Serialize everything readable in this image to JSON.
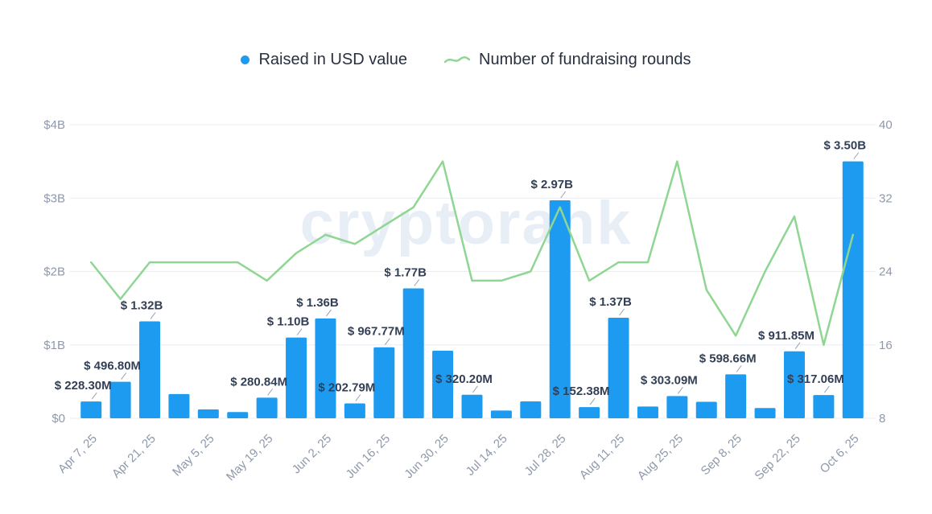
{
  "watermark_text": "cryptorank",
  "colors": {
    "bar": "#1D9BF0",
    "line": "#8FD693",
    "data_label": "#333F54",
    "axis_label": "#8E99AB",
    "grid": "#E9EDF3",
    "connector": "#97A1B2",
    "watermark": "#E8EEF6",
    "legend_text": "#28303F",
    "background": "#FFFFFF"
  },
  "chart_data": {
    "type": "bar+line combo",
    "title": "",
    "n_points": 27,
    "x_tick_every_n_bars": 2,
    "x_tick_labels": [
      "Apr 7, 25",
      "Apr 21, 25",
      "May 5, 25",
      "May 19, 25",
      "Jun 2, 25",
      "Jun 16, 25",
      "Jun 30, 25",
      "Jul 14, 25",
      "Jul 28, 25",
      "Aug 11, 25",
      "Aug 25, 25",
      "Sep 8, 25",
      "Sep 22, 25",
      "Oct 6, 25"
    ],
    "left_axis": {
      "title": "Raised in USD",
      "unit": "million USD",
      "min": 0,
      "max": 4000,
      "tick_values": [
        0,
        1000,
        2000,
        3000,
        4000
      ],
      "tick_labels": [
        "$0",
        "$1B",
        "$2B",
        "$3B",
        "$4B"
      ]
    },
    "right_axis": {
      "title": "Number of fundraising rounds",
      "min": 8,
      "max": 40,
      "tick_values": [
        8,
        16,
        24,
        32,
        40
      ],
      "tick_labels": [
        "8",
        "16",
        "24",
        "32",
        "40"
      ]
    },
    "grid": "horizontal",
    "legend_position": "top-center",
    "series": [
      {
        "name": "Raised in USD value",
        "type": "bar",
        "axis": "left",
        "unit": "million USD",
        "values": [
          228.3,
          496.8,
          1320,
          330,
          120,
          85,
          280.84,
          1100,
          1360,
          202.79,
          967.77,
          1770,
          920,
          320.2,
          105,
          230,
          2970,
          152.38,
          1370,
          160,
          303.09,
          225,
          598.66,
          140,
          911.85,
          317.06,
          3500
        ],
        "point_labels": [
          {
            "index": 0,
            "text": "$ 228.30M"
          },
          {
            "index": 1,
            "text": "$ 496.80M"
          },
          {
            "index": 2,
            "text": "$ 1.32B"
          },
          {
            "index": 6,
            "text": "$ 280.84M"
          },
          {
            "index": 7,
            "text": "$ 1.10B"
          },
          {
            "index": 8,
            "text": "$ 1.36B"
          },
          {
            "index": 9,
            "text": "$ 202.79M"
          },
          {
            "index": 10,
            "text": "$ 967.77M"
          },
          {
            "index": 11,
            "text": "$ 1.77B"
          },
          {
            "index": 13,
            "text": "$ 320.20M"
          },
          {
            "index": 16,
            "text": "$ 2.97B"
          },
          {
            "index": 17,
            "text": "$ 152.38M"
          },
          {
            "index": 18,
            "text": "$ 1.37B"
          },
          {
            "index": 20,
            "text": "$ 303.09M"
          },
          {
            "index": 22,
            "text": "$ 598.66M"
          },
          {
            "index": 24,
            "text": "$ 911.85M"
          },
          {
            "index": 25,
            "text": "$ 317.06M"
          },
          {
            "index": 26,
            "text": "$ 3.50B"
          }
        ]
      },
      {
        "name": "Number of fundraising rounds",
        "type": "line",
        "axis": "right",
        "values": [
          25,
          21,
          25,
          25,
          25,
          25,
          23,
          26,
          28,
          27,
          29,
          31,
          36,
          23,
          23,
          24,
          31,
          23,
          25,
          25,
          36,
          22,
          17,
          24,
          30,
          16,
          28
        ]
      }
    ]
  }
}
